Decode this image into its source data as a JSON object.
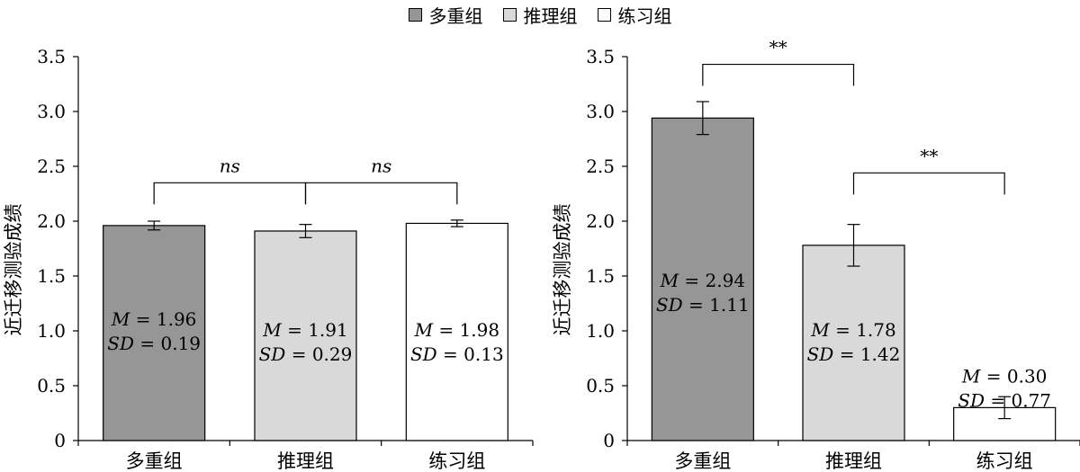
{
  "legend": [
    {
      "label": "多重组",
      "color": "#969696"
    },
    {
      "label": "推理组",
      "color": "#d9d9d9"
    },
    {
      "label": "练习组",
      "color": "#ffffff"
    }
  ],
  "chart_data": [
    {
      "type": "bar",
      "ylabel": "近迁移测验成绩",
      "ylim": [
        0,
        3.5
      ],
      "yticks": [
        "0",
        "0.5",
        "1.0",
        "1.5",
        "2.0",
        "2.5",
        "3.0",
        "3.5"
      ],
      "categories": [
        "多重组",
        "推理组",
        "练习组"
      ],
      "values": [
        1.96,
        1.91,
        1.98
      ],
      "error": [
        0.04,
        0.06,
        0.03
      ],
      "colors": [
        "#969696",
        "#d9d9d9",
        "#ffffff"
      ],
      "annotations": [
        {
          "m_label": "M",
          "m_value": "= 1.96",
          "sd_label": "SD",
          "sd_value": "= 0.19"
        },
        {
          "m_label": "M",
          "m_value": "= 1.91",
          "sd_label": "SD",
          "sd_value": "= 0.29"
        },
        {
          "m_label": "M",
          "m_value": "= 1.98",
          "sd_label": "SD",
          "sd_value": "= 0.13"
        }
      ],
      "significance": [
        {
          "from": 0,
          "to": 1,
          "label": "ns",
          "level": 2.35
        },
        {
          "from": 1,
          "to": 2,
          "label": "ns",
          "level": 2.35
        }
      ]
    },
    {
      "type": "bar",
      "ylabel": "近迁移测验成绩",
      "ylim": [
        0,
        3.5
      ],
      "yticks": [
        "0",
        "0.5",
        "1.0",
        "1.5",
        "2.0",
        "2.5",
        "3.0",
        "3.5"
      ],
      "categories": [
        "多重组",
        "推理组",
        "练习组"
      ],
      "values": [
        2.94,
        1.78,
        0.3
      ],
      "error": [
        0.15,
        0.19,
        0.1
      ],
      "colors": [
        "#969696",
        "#d9d9d9",
        "#ffffff"
      ],
      "annotations": [
        {
          "m_label": "M",
          "m_value": "= 2.94",
          "sd_label": "SD",
          "sd_value": "= 1.11"
        },
        {
          "m_label": "M",
          "m_value": "= 1.78",
          "sd_label": "SD",
          "sd_value": "= 1.42"
        },
        {
          "m_label": "M",
          "m_value": "= 0.30",
          "sd_label": "SD",
          "sd_value": "= 0.77"
        }
      ],
      "significance": [
        {
          "from": 0,
          "to": 1,
          "label": "**",
          "level": 3.43
        },
        {
          "from": 1,
          "to": 2,
          "label": "**",
          "level": 2.44
        }
      ]
    }
  ]
}
